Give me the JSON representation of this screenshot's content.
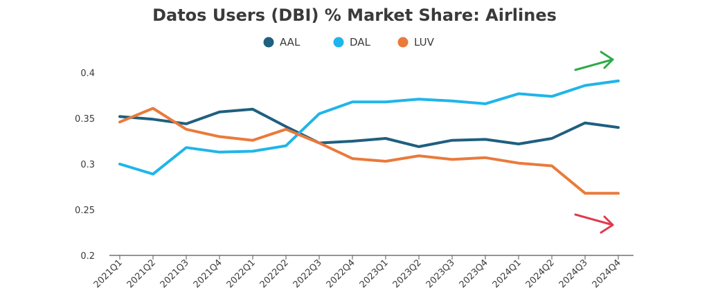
{
  "chart_data": {
    "type": "line",
    "title": "Datos Users (DBI) % Market Share: Airlines",
    "xlabel": "",
    "ylabel": "",
    "categories": [
      "2021Q1",
      "2021Q2",
      "2021Q3",
      "2021Q4",
      "2022Q1",
      "2022Q2",
      "2022Q3",
      "2022Q4",
      "2023Q1",
      "2023Q2",
      "2023Q3",
      "2023Q4",
      "2024Q1",
      "2024Q2",
      "2024Q3",
      "2024Q4"
    ],
    "yticks": [
      "0.4",
      "0.35",
      "0.3",
      "0.25",
      "0.2"
    ],
    "ylim": [
      0.2,
      0.4
    ],
    "grid": false,
    "legend_position": "top",
    "series": [
      {
        "name": "AAL",
        "color": "#1f5f7f",
        "values": [
          0.352,
          0.349,
          0.344,
          0.357,
          0.36,
          0.341,
          0.323,
          0.325,
          0.328,
          0.319,
          0.326,
          0.327,
          0.322,
          0.328,
          0.345,
          0.34
        ]
      },
      {
        "name": "DAL",
        "color": "#1fb5ea",
        "values": [
          0.3,
          0.289,
          0.318,
          0.313,
          0.314,
          0.32,
          0.355,
          0.368,
          0.368,
          0.371,
          0.369,
          0.366,
          0.377,
          0.374,
          0.386,
          0.391
        ]
      },
      {
        "name": "LUV",
        "color": "#ea7a3b",
        "values": [
          0.346,
          0.361,
          0.338,
          0.33,
          0.326,
          0.338,
          0.323,
          0.306,
          0.303,
          0.309,
          0.305,
          0.307,
          0.301,
          0.298,
          0.268,
          0.268
        ]
      }
    ],
    "annotations": [
      {
        "type": "arrow",
        "direction": "up",
        "color": "#2daa4a"
      },
      {
        "type": "arrow",
        "direction": "down",
        "color": "#e03a4e"
      }
    ]
  }
}
